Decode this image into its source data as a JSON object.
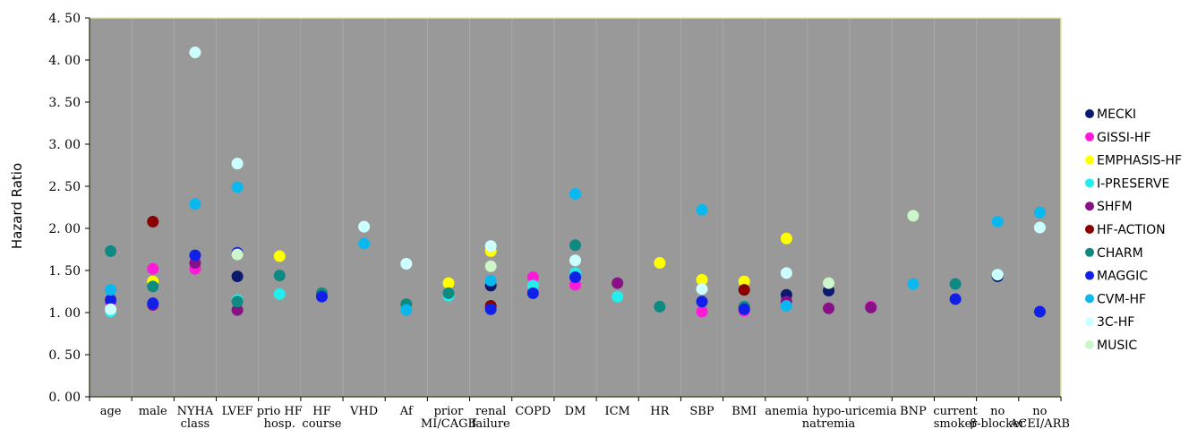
{
  "chart_data": {
    "type": "scatter",
    "title": "",
    "xlabel": "",
    "ylabel": "Hazard Ratio",
    "ylim": [
      0,
      4.5
    ],
    "yticks": [
      "0. 00",
      "0. 50",
      "1. 00",
      "1. 50",
      "2. 00",
      "2. 50",
      "3. 00",
      "3. 50",
      "4. 00",
      "4. 50"
    ],
    "grid": true,
    "legend_position": "right",
    "plot_background": "#999999",
    "plot_border": "#e8e8a0",
    "categories": [
      [
        "age"
      ],
      [
        "male"
      ],
      [
        "NYHA",
        "class"
      ],
      [
        "LVEF"
      ],
      [
        "prio HF",
        "hosp."
      ],
      [
        "HF",
        "course"
      ],
      [
        "VHD"
      ],
      [
        "Af"
      ],
      [
        "prior",
        "MI/CAGB"
      ],
      [
        "renal",
        "failure"
      ],
      [
        "COPD"
      ],
      [
        "DM"
      ],
      [
        "ICM"
      ],
      [
        "HR"
      ],
      [
        "SBP"
      ],
      [
        "BMI"
      ],
      [
        "anemia"
      ],
      [
        "hypo-",
        "natremia"
      ],
      [
        "uricemia"
      ],
      [
        "BNP"
      ],
      [
        "current",
        "smoker"
      ],
      [
        "no",
        "β-blocker"
      ],
      [
        "no",
        "ACEI/ARB"
      ]
    ],
    "series": [
      {
        "name": "MECKI",
        "color": "#0c1a6e",
        "points": [
          [
            3,
            1.43
          ],
          [
            9,
            1.32
          ],
          [
            16,
            1.21
          ],
          [
            17,
            1.26
          ],
          [
            21,
            1.43
          ]
        ]
      },
      {
        "name": "GISSI-HF",
        "color": "#ff19d9",
        "points": [
          [
            0,
            1.13
          ],
          [
            1,
            1.52
          ],
          [
            2,
            1.52
          ],
          [
            9,
            1.06
          ],
          [
            10,
            1.42
          ],
          [
            11,
            1.33
          ],
          [
            14,
            1.01
          ],
          [
            15,
            1.02
          ],
          [
            18,
            1.07
          ]
        ]
      },
      {
        "name": "EMPHASIS-HF",
        "color": "#ffff00",
        "points": [
          [
            1,
            1.37
          ],
          [
            4,
            1.67
          ],
          [
            8,
            1.35
          ],
          [
            9,
            1.73
          ],
          [
            13,
            1.59
          ],
          [
            14,
            1.39
          ],
          [
            15,
            1.37
          ],
          [
            16,
            1.88
          ]
        ]
      },
      {
        "name": "I-PRESERVE",
        "color": "#22eeee",
        "points": [
          [
            0,
            1.01
          ],
          [
            3,
            1.15
          ],
          [
            4,
            1.22
          ],
          [
            8,
            1.2
          ],
          [
            10,
            1.32
          ],
          [
            11,
            1.47
          ],
          [
            12,
            1.19
          ]
        ]
      },
      {
        "name": "SHFM",
        "color": "#881188",
        "points": [
          [
            1,
            1.09
          ],
          [
            2,
            1.59
          ],
          [
            3,
            1.03
          ],
          [
            12,
            1.35
          ],
          [
            16,
            1.13
          ],
          [
            17,
            1.05
          ],
          [
            18,
            1.06
          ]
        ]
      },
      {
        "name": "HF-ACTION",
        "color": "#880000",
        "points": [
          [
            1,
            2.08
          ],
          [
            9,
            1.08
          ],
          [
            15,
            1.27
          ]
        ]
      },
      {
        "name": "CHARM",
        "color": "#0f8a82",
        "points": [
          [
            0,
            1.73
          ],
          [
            1,
            1.31
          ],
          [
            3,
            1.13
          ],
          [
            4,
            1.44
          ],
          [
            5,
            1.23
          ],
          [
            7,
            1.1
          ],
          [
            8,
            1.23
          ],
          [
            11,
            1.8
          ],
          [
            13,
            1.07
          ],
          [
            15,
            1.07
          ],
          [
            20,
            1.34
          ]
        ]
      },
      {
        "name": "MAGGIC",
        "color": "#1020e8",
        "points": [
          [
            0,
            1.15
          ],
          [
            1,
            1.11
          ],
          [
            2,
            1.68
          ],
          [
            3,
            1.71
          ],
          [
            5,
            1.19
          ],
          [
            9,
            1.04
          ],
          [
            10,
            1.23
          ],
          [
            11,
            1.42
          ],
          [
            14,
            1.13
          ],
          [
            15,
            1.04
          ],
          [
            20,
            1.16
          ],
          [
            22,
            1.01
          ]
        ]
      },
      {
        "name": "CVM-HF",
        "color": "#0ab8f0",
        "points": [
          [
            0,
            1.27
          ],
          [
            2,
            2.29
          ],
          [
            3,
            2.49
          ],
          [
            6,
            1.82
          ],
          [
            7,
            1.03
          ],
          [
            9,
            1.38
          ],
          [
            11,
            2.41
          ],
          [
            14,
            2.22
          ],
          [
            16,
            1.08
          ],
          [
            19,
            1.34
          ],
          [
            21,
            2.08
          ],
          [
            22,
            2.19
          ]
        ]
      },
      {
        "name": "3C-HF",
        "color": "#ccffff",
        "points": [
          [
            0,
            1.04
          ],
          [
            2,
            4.09
          ],
          [
            3,
            2.77
          ],
          [
            6,
            2.02
          ],
          [
            7,
            1.58
          ],
          [
            9,
            1.79
          ],
          [
            11,
            1.62
          ],
          [
            14,
            1.28
          ],
          [
            16,
            1.47
          ],
          [
            21,
            1.45
          ],
          [
            22,
            2.01
          ]
        ]
      },
      {
        "name": "MUSIC",
        "color": "#ccf5c8",
        "points": [
          [
            3,
            1.69
          ],
          [
            9,
            1.55
          ],
          [
            17,
            1.35
          ],
          [
            19,
            2.15
          ]
        ]
      }
    ]
  }
}
